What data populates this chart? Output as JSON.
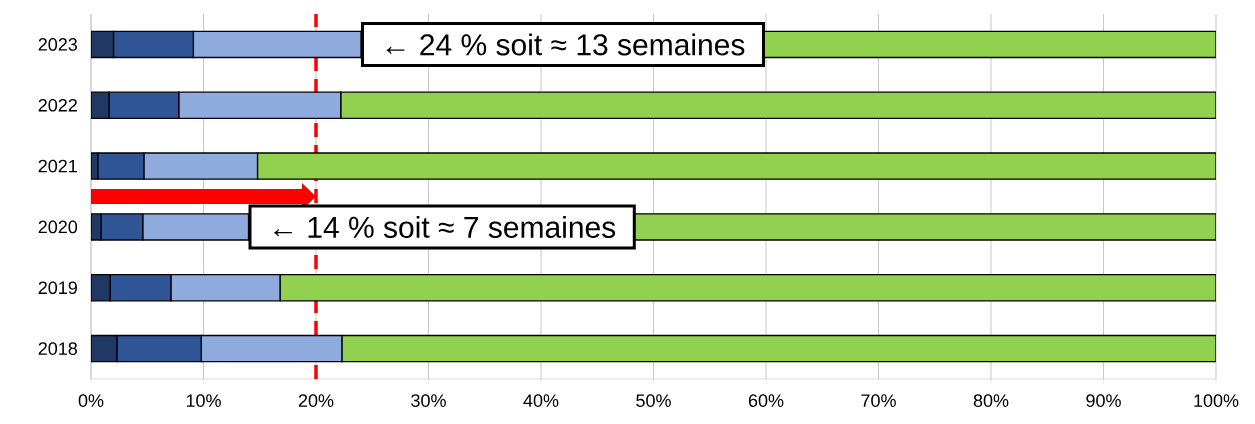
{
  "chart_data": {
    "type": "bar",
    "orientation": "horizontal",
    "stacked": true,
    "categories": [
      "2023",
      "2022",
      "2021",
      "2020",
      "2019",
      "2018"
    ],
    "series": [
      {
        "color": "#1f3864",
        "values": [
          2.0,
          1.6,
          0.6,
          0.9,
          1.7,
          2.3
        ]
      },
      {
        "color": "#2f5597",
        "values": [
          7.1,
          6.2,
          4.1,
          3.7,
          5.4,
          7.5
        ]
      },
      {
        "color": "#8faadc",
        "values": [
          14.9,
          14.4,
          10.1,
          9.4,
          9.7,
          12.5
        ]
      },
      {
        "color": "#92d050",
        "values": [
          76.0,
          77.8,
          85.2,
          86.0,
          83.2,
          77.7
        ]
      }
    ],
    "xlim": [
      0,
      100
    ],
    "xticks": [
      {
        "value": 0,
        "label": "0%"
      },
      {
        "value": 10,
        "label": "10%"
      },
      {
        "value": 20,
        "label": "20%"
      },
      {
        "value": 30,
        "label": "30%"
      },
      {
        "value": 40,
        "label": "40%"
      },
      {
        "value": 50,
        "label": "50%"
      },
      {
        "value": 60,
        "label": "60%"
      },
      {
        "value": 70,
        "label": "70%"
      },
      {
        "value": 80,
        "label": "80%"
      },
      {
        "value": 90,
        "label": "90%"
      },
      {
        "value": 100,
        "label": "100%"
      }
    ],
    "grid": "x",
    "ref_lines": [
      {
        "axis": "x",
        "value": 20,
        "color": "#ff0000",
        "line_style": "dashed"
      }
    ],
    "annotations": [
      {
        "text": "← 24 % soit ≈ 13 semaines",
        "x": 24,
        "y": "2023"
      },
      {
        "text": "← 14 % soit ≈ 7 semaines",
        "x": 14,
        "y": "2020"
      }
    ]
  }
}
